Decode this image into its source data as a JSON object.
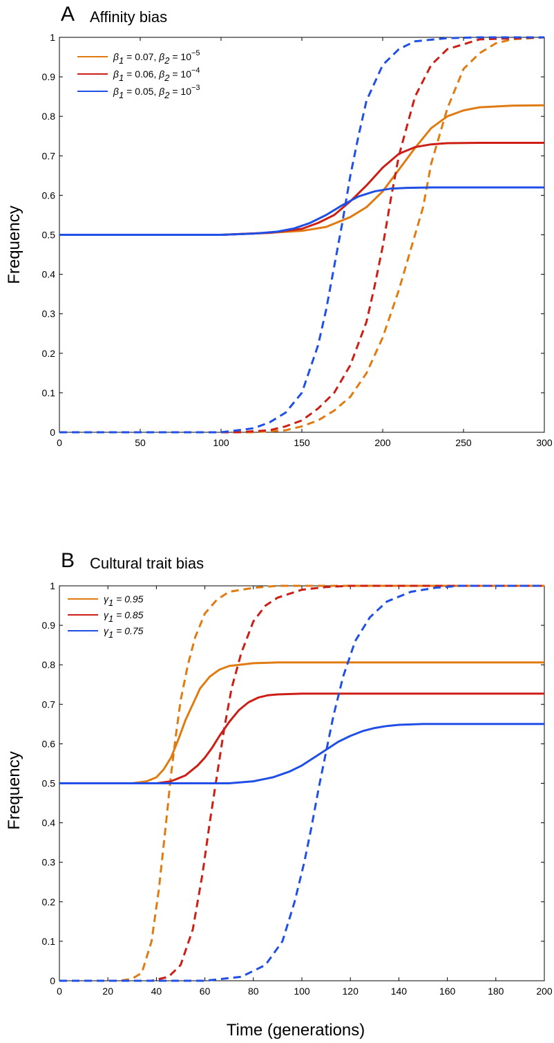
{
  "chart_data": [
    {
      "type": "line",
      "panel": "A",
      "title": "Affinity bias",
      "xlabel": "",
      "ylabel": "Frequency",
      "xlim": [
        0,
        300
      ],
      "ylim": [
        0,
        1
      ],
      "xticks": [
        "0",
        "50",
        "100",
        "150",
        "200",
        "250",
        "300"
      ],
      "yticks": [
        "0",
        "0.1",
        "0.2",
        "0.3",
        "0.4",
        "0.5",
        "0.6",
        "0.7",
        "0.8",
        "0.9",
        "1"
      ],
      "legend": {
        "placement": "top-left"
      },
      "series": [
        {
          "name": "β1 = 0.07, β2 = 10−5",
          "legend_parts": [
            "β",
            "1",
            " = 0.07, ",
            "β",
            "2",
            " = 10",
            "−5"
          ],
          "color": "#e07b12",
          "solid": {
            "x": [
              0,
              100,
              130,
              150,
              165,
              180,
              190,
              200,
              210,
              220,
              230,
              240,
              250,
              260,
              280,
              300
            ],
            "y": [
              0.5,
              0.5,
              0.505,
              0.51,
              0.52,
              0.545,
              0.57,
              0.61,
              0.665,
              0.72,
              0.77,
              0.8,
              0.815,
              0.823,
              0.827,
              0.828
            ]
          },
          "dashed": {
            "x": [
              0,
              120,
              140,
              150,
              160,
              170,
              180,
              190,
              200,
              210,
              220,
              225,
              230,
              240,
              250,
              260,
              270,
              280,
              300
            ],
            "y": [
              0,
              0,
              0.005,
              0.015,
              0.03,
              0.055,
              0.09,
              0.15,
              0.24,
              0.36,
              0.5,
              0.57,
              0.68,
              0.82,
              0.92,
              0.96,
              0.985,
              0.995,
              1.0
            ]
          }
        },
        {
          "name": "β1 = 0.06, β2 = 10−4",
          "legend_parts": [
            "β",
            "1",
            " = 0.06, ",
            "β",
            "2",
            " = 10",
            "−4"
          ],
          "color": "#cc1e14",
          "solid": {
            "x": [
              0,
              100,
              130,
              150,
              160,
              170,
              180,
              190,
              200,
              210,
              220,
              230,
              240,
              260,
              300
            ],
            "y": [
              0.5,
              0.5,
              0.505,
              0.515,
              0.53,
              0.55,
              0.585,
              0.625,
              0.67,
              0.705,
              0.722,
              0.729,
              0.732,
              0.733,
              0.733
            ]
          },
          "dashed": {
            "x": [
              0,
              110,
              130,
              140,
              150,
              160,
              170,
              180,
              190,
              195,
              200,
              205,
              210,
              220,
              230,
              240,
              260,
              300
            ],
            "y": [
              0,
              0,
              0.005,
              0.015,
              0.03,
              0.06,
              0.1,
              0.17,
              0.28,
              0.37,
              0.47,
              0.59,
              0.7,
              0.85,
              0.93,
              0.97,
              0.995,
              1.0
            ]
          }
        },
        {
          "name": "β1 = 0.05, β2 = 10−3",
          "legend_parts": [
            "β",
            "1",
            " = 0.05, ",
            "β",
            "2",
            " = 10",
            "−3"
          ],
          "color": "#1f4fe6",
          "solid": {
            "x": [
              0,
              100,
              120,
              135,
              145,
              155,
              165,
              175,
              185,
              195,
              205,
              215,
              230,
              300
            ],
            "y": [
              0.5,
              0.5,
              0.503,
              0.508,
              0.516,
              0.53,
              0.55,
              0.575,
              0.597,
              0.61,
              0.617,
              0.619,
              0.62,
              0.62
            ]
          },
          "dashed": {
            "x": [
              0,
              100,
              120,
              130,
              140,
              150,
              160,
              165,
              170,
              175,
              180,
              185,
              190,
              200,
              210,
              220,
              240,
              260,
              300
            ],
            "y": [
              0,
              0,
              0.01,
              0.025,
              0.05,
              0.1,
              0.22,
              0.31,
              0.42,
              0.53,
              0.65,
              0.75,
              0.84,
              0.93,
              0.97,
              0.99,
              0.998,
              1.0,
              1.0
            ]
          }
        }
      ]
    },
    {
      "type": "line",
      "panel": "B",
      "title": "Cultural trait bias",
      "xlabel": "Time (generations)",
      "ylabel": "Frequency",
      "xlim": [
        0,
        200
      ],
      "ylim": [
        0,
        1
      ],
      "xticks": [
        "0",
        "20",
        "40",
        "60",
        "80",
        "100",
        "120",
        "140",
        "160",
        "180",
        "200"
      ],
      "yticks": [
        "0",
        "0.1",
        "0.2",
        "0.3",
        "0.4",
        "0.5",
        "0.6",
        "0.7",
        "0.8",
        "0.9",
        "1"
      ],
      "legend": {
        "placement": "top-left"
      },
      "series": [
        {
          "name": "γ 1 = 0.95",
          "legend_parts": [
            "γ",
            "1",
            " = 0.95"
          ],
          "color": "#e07b12",
          "solid": {
            "x": [
              0,
              30,
              36,
              40,
              43,
              46,
              49,
              52,
              55,
              58,
              62,
              66,
              70,
              80,
              90,
              200
            ],
            "y": [
              0.5,
              0.5,
              0.505,
              0.515,
              0.535,
              0.565,
              0.61,
              0.66,
              0.7,
              0.74,
              0.77,
              0.788,
              0.797,
              0.804,
              0.806,
              0.806
            ]
          },
          "dashed": {
            "x": [
              0,
              25,
              30,
              34,
              38,
              41,
              44,
              46,
              48,
              50,
              53,
              56,
              60,
              65,
              70,
              80,
              90,
              110,
              200
            ],
            "y": [
              0,
              0,
              0.005,
              0.02,
              0.1,
              0.23,
              0.4,
              0.52,
              0.62,
              0.71,
              0.8,
              0.87,
              0.93,
              0.965,
              0.985,
              0.995,
              1.0,
              1.0,
              1.0
            ]
          }
        },
        {
          "name": "γ 1 = 0.85",
          "legend_parts": [
            "γ",
            "1",
            " = 0.85"
          ],
          "color": "#cc1e14",
          "solid": {
            "x": [
              0,
              40,
              46,
              52,
              57,
              60,
              63,
              66,
              70,
              74,
              78,
              82,
              86,
              90,
              100,
              120,
              200
            ],
            "y": [
              0.5,
              0.5,
              0.505,
              0.52,
              0.545,
              0.565,
              0.59,
              0.62,
              0.655,
              0.685,
              0.705,
              0.717,
              0.723,
              0.725,
              0.727,
              0.727,
              0.727
            ]
          },
          "dashed": {
            "x": [
              0,
              38,
              45,
              50,
              55,
              59,
              62,
              65,
              68,
              71,
              75,
              80,
              85,
              90,
              100,
              110,
              120,
              200
            ],
            "y": [
              0,
              0,
              0.01,
              0.04,
              0.13,
              0.27,
              0.4,
              0.52,
              0.64,
              0.74,
              0.83,
              0.91,
              0.95,
              0.97,
              0.99,
              0.997,
              1.0,
              1.0
            ]
          }
        },
        {
          "name": "γ 1 = 0.75",
          "legend_parts": [
            "γ",
            "1",
            " = 0.75"
          ],
          "color": "#1f4fe6",
          "solid": {
            "x": [
              0,
              70,
              80,
              88,
              95,
              100,
              105,
              110,
              115,
              120,
              125,
              130,
              135,
              140,
              150,
              160,
              200
            ],
            "y": [
              0.5,
              0.5,
              0.505,
              0.515,
              0.53,
              0.545,
              0.565,
              0.585,
              0.605,
              0.62,
              0.632,
              0.64,
              0.645,
              0.648,
              0.65,
              0.65,
              0.65
            ]
          },
          "dashed": {
            "x": [
              0,
              60,
              75,
              85,
              92,
              97,
              101,
              104,
              107,
              110,
              113,
              117,
              122,
              128,
              135,
              145,
              155,
              165,
              200
            ],
            "y": [
              0,
              0,
              0.01,
              0.04,
              0.1,
              0.2,
              0.3,
              0.39,
              0.49,
              0.58,
              0.67,
              0.77,
              0.86,
              0.92,
              0.96,
              0.985,
              0.995,
              1.0,
              1.0
            ]
          }
        }
      ]
    }
  ]
}
